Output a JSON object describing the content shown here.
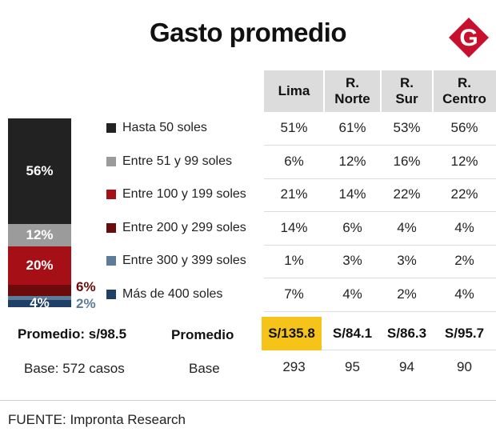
{
  "title": "Gasto promedio",
  "logo": {
    "letter": "G",
    "color": "#c8102e"
  },
  "chart_data": {
    "type": "table",
    "stacked_bar": {
      "segments": [
        {
          "label": "56%",
          "value": 56,
          "color": "#222222"
        },
        {
          "label": "12%",
          "value": 12,
          "color": "#9b9b9b"
        },
        {
          "label": "20%",
          "value": 20,
          "color": "#a50f15"
        },
        {
          "label": "6%",
          "value": 6,
          "color": "#6b0b0b"
        },
        {
          "label": "2%",
          "value": 2,
          "color": "#5b7d99"
        },
        {
          "label": "4%",
          "value": 4,
          "color": "#1f3f66"
        }
      ]
    },
    "categories": [
      "Hasta 50 soles",
      "Entre  51 y  99 soles",
      "Entre 100 y 199 soles",
      "Entre 200 y 299 soles",
      "Entre 300 y 399 soles",
      "Más de 400 soles"
    ],
    "columns": [
      "Lima",
      "R.\nNorte",
      "R.\nSur",
      "R.\nCentro"
    ],
    "rows": [
      [
        "51%",
        "61%",
        "53%",
        "56%"
      ],
      [
        "6%",
        "12%",
        "16%",
        "12%"
      ],
      [
        "21%",
        "14%",
        "22%",
        "22%"
      ],
      [
        "14%",
        "6%",
        "4%",
        "4%"
      ],
      [
        "1%",
        "3%",
        "3%",
        "2%"
      ],
      [
        "7%",
        "4%",
        "2%",
        "4%"
      ]
    ],
    "promedio_label_left": "Promedio: s/98.5",
    "promedio_label": "Promedio",
    "promedio": [
      "S/135.8",
      "S/84.1",
      "S/86.3",
      "S/95.7"
    ],
    "base_label_left": "Base:  572 casos",
    "base_label": "Base",
    "base": [
      "293",
      "95",
      "94",
      "90"
    ]
  },
  "source": "FUENTE: Impronta Research",
  "highlight_color": "#f6c319"
}
